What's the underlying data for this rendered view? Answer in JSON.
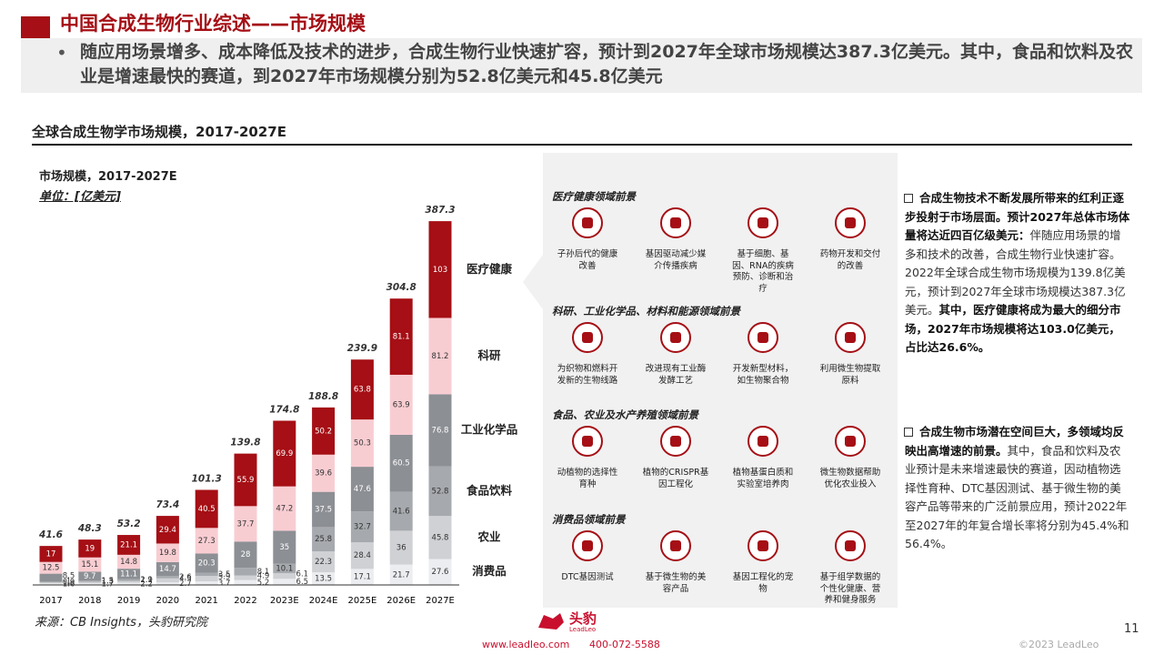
{
  "header": {
    "title": "中国合成生物行业综述——市场规模",
    "bullet": "随应用场景增多、成本降低及技术的进步，合成生物行业快速扩容，预计到2027年全球市场规模达387.3亿美元。其中，食品和饮料及农业是增速最快的赛道，到2027年市场规模分别为52.8亿美元和45.8亿美元"
  },
  "section_title": "全球合成生物学市场规模，2017-2027E",
  "chart_data": {
    "type": "stacked_bar",
    "title": "市场规模，2017-2027E",
    "unit": "单位：[亿美元]",
    "categories": [
      "2017",
      "2018",
      "2019",
      "2020",
      "2021",
      "2022",
      "2023E",
      "2024E",
      "2025E",
      "2026E",
      "2027E"
    ],
    "series": [
      {
        "name": "消费品",
        "color": "#ecedf0",
        "values": [
          1.6,
          1.7,
          2.2,
          2.7,
          3.7,
          5.2,
          6.5,
          13.5,
          17.1,
          21.7,
          27.6
        ]
      },
      {
        "name": "农业",
        "color": "#cfd1d4",
        "values": [
          1.0,
          1.5,
          1.9,
          4.3,
          5.9,
          4.9,
          6.1,
          22.3,
          28.4,
          36.0,
          45.8
        ]
      },
      {
        "name": "食品饮料",
        "color": "#a6a9ad",
        "values": [
          0.9,
          1.3,
          2.1,
          2.6,
          3.5,
          8.1,
          10.1,
          25.8,
          32.7,
          41.6,
          52.8
        ]
      },
      {
        "name": "工业化学品",
        "color": "#8c8f94",
        "values": [
          8.5,
          9.7,
          11.1,
          14.7,
          20.3,
          28.0,
          35.0,
          37.5,
          47.6,
          60.5,
          76.8
        ]
      },
      {
        "name": "科研",
        "color": "#f8cdd2",
        "values": [
          12.5,
          15.1,
          14.8,
          19.8,
          27.3,
          37.7,
          47.2,
          39.6,
          50.3,
          63.9,
          81.2
        ]
      },
      {
        "name": "医疗健康",
        "color": "#a50f15",
        "values": [
          17.0,
          19.0,
          21.1,
          29.4,
          40.5,
          55.9,
          69.9,
          50.2,
          63.8,
          81.1,
          103.0
        ]
      }
    ],
    "totals": [
      41.6,
      48.3,
      53.2,
      73.4,
      101.3,
      139.8,
      174.8,
      188.8,
      239.9,
      304.8,
      387.3
    ]
  },
  "panel": [
    {
      "title": "医疗健康领域前景",
      "items": [
        "子孙后代的健康改善",
        "基因驱动减少媒介传播疾病",
        "基于细胞、基因、RNA的疾病预防、诊断和治疗",
        "药物开发和交付的改善"
      ]
    },
    {
      "title": "科研、工业化学品、材料和能源领域前景",
      "items": [
        "为织物和燃料开发新的生物线路",
        "改进现有工业酶发酵工艺",
        "开发新型材料，如生物聚合物",
        "利用微生物提取原料"
      ]
    },
    {
      "title": "食品、农业及水产养殖领域前景",
      "items": [
        "动植物的选择性育种",
        "植物的CRISPR基因工程化",
        "植物基蛋白质和实验室培养肉",
        "微生物数据帮助优化农业投入"
      ]
    },
    {
      "title": "消费品领域前景",
      "items": [
        "DTC基因测试",
        "基于微生物的美容产品",
        "基因工程化的宠物",
        "基于组学数据的个性化健康、营养和健身服务"
      ]
    }
  ],
  "notes": [
    [
      {
        "text": "合成生物技术不断发展所带来的红利正逐步投射于市场层面。预计2027年总体市场体量将达近四百亿级美元：",
        "bold": true
      },
      {
        "text": "伴随应用场景的增多和技术的改善，合成生物行业快速扩容。2022年全球合成生物市场规模为139.8亿美元，预计到2027年全球市场规模达387.3亿美元。",
        "bold": false
      },
      {
        "text": "其中，医疗健康将成为最大的细分市场，2027年市场规模将达103.0亿美元，占比达26.6%。",
        "bold": true
      }
    ],
    [
      {
        "text": "合成生物市场潜在空间巨大，多领域均反映出高增速的前景。",
        "bold": true
      },
      {
        "text": "其中，食品和饮料及农业预计是未来增速最快的赛道，因动植物选择性育种、DTC基因测试、基于微生物的美容产品等带来的广泛前景应用，预计2022年至2027年的年复合增长率将分别为45.4%和56.4%。",
        "bold": false
      }
    ]
  ],
  "footer": {
    "source": "来源：CB Insights，头豹研究院",
    "brand": "头豹",
    "brand_en": "LeadLeo",
    "url": "www.leadleo.com",
    "phone": "400-072-5588",
    "copyright": "©2023 LeadLeo",
    "page": "11"
  }
}
